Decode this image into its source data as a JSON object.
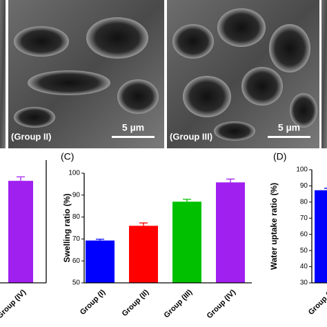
{
  "images": [
    {
      "label": "(Group II)",
      "scale": "5 µm"
    },
    {
      "label": "(Group III)",
      "scale": "5 µm"
    }
  ],
  "chart_data": [
    {
      "type": "bar",
      "categories": [
        "Group (IV)"
      ],
      "values": [
        96.5
      ],
      "errors": [
        1.8
      ],
      "colors": [
        "#a020f0"
      ],
      "ylim": [
        50,
        100
      ]
    },
    {
      "type": "bar",
      "panel_label": "(C)",
      "ylabel": "Swelling ratio (%)",
      "categories": [
        "Group (I)",
        "Group (II)",
        "Group (III)",
        "Group (IV)"
      ],
      "values": [
        69.3,
        76,
        87,
        95.8
      ],
      "errors": [
        0.6,
        1.3,
        1.1,
        1.5
      ],
      "colors": [
        "#0000ff",
        "#ff0000",
        "#00c000",
        "#a020f0"
      ],
      "ylim": [
        50,
        100
      ],
      "yticks": [
        50,
        60,
        70,
        80,
        90,
        100
      ]
    },
    {
      "type": "bar",
      "panel_label": "(D)",
      "ylabel": "Water uptake ratio (%)",
      "categories": [
        "Group (I)"
      ],
      "values": [
        87.3
      ],
      "errors": [
        1.2
      ],
      "colors": [
        "#0000ff"
      ],
      "ylim": [
        30,
        100
      ],
      "yticks": [
        30,
        40,
        50,
        60,
        70,
        80,
        90,
        100
      ]
    }
  ]
}
